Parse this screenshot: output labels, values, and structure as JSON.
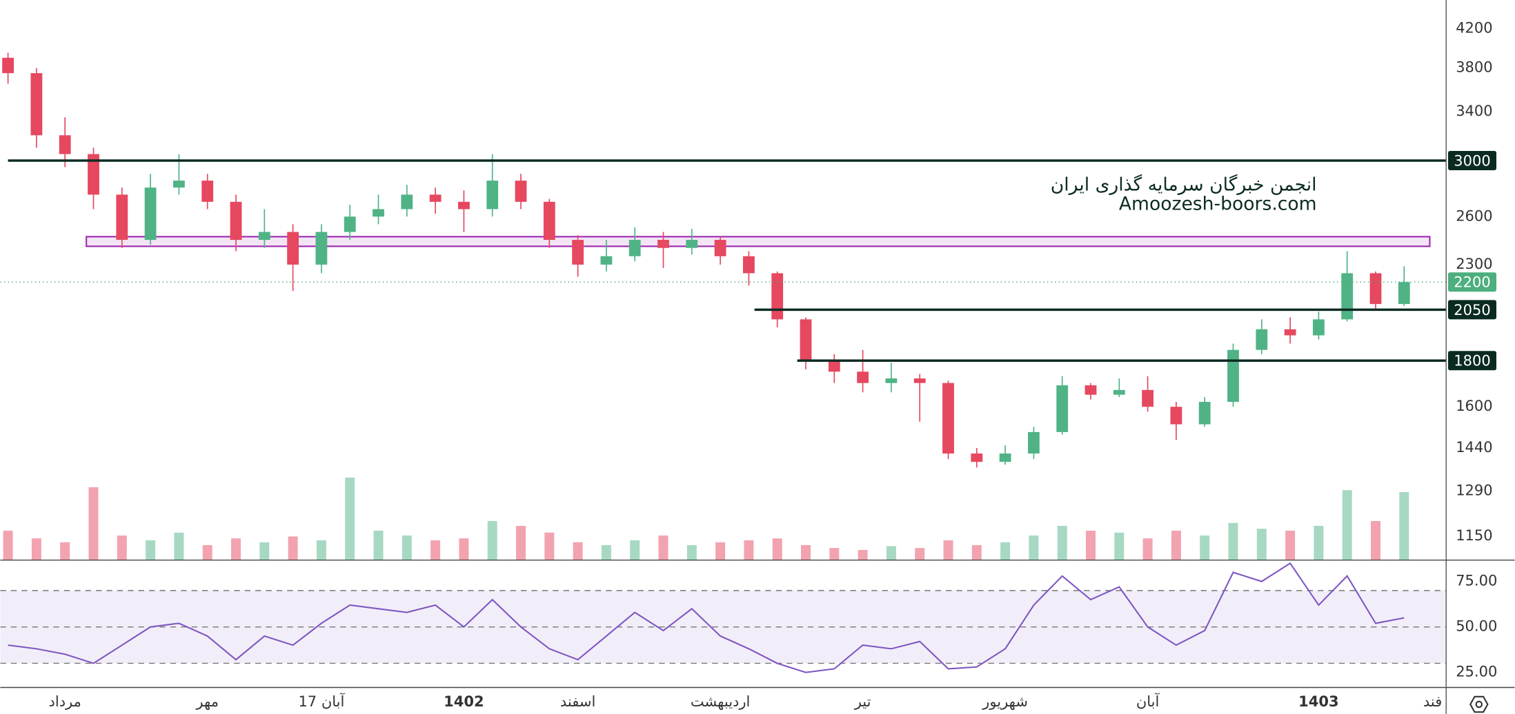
{
  "chart_data": {
    "type": "candlestick",
    "log_scale": true,
    "grid": false,
    "up_color": "#4fb386",
    "down_color": "#e5485f",
    "open": [
      3900,
      3750,
      3200,
      3050,
      2750,
      2450,
      2800,
      2850,
      2700,
      2450,
      2500,
      2300,
      2500,
      2600,
      2650,
      2750,
      2700,
      2650,
      2850,
      2700,
      2450,
      2300,
      2350,
      2450,
      2400,
      2450,
      2350,
      2250,
      2000,
      1800,
      1750,
      1700,
      1720,
      1700,
      1420,
      1390,
      1420,
      1500,
      1690,
      1650,
      1670,
      1600,
      1530,
      1620,
      1850,
      1950,
      1920,
      2000,
      2250,
      2080
    ],
    "high": [
      3950,
      3800,
      3350,
      3100,
      2800,
      2900,
      3050,
      2900,
      2750,
      2650,
      2550,
      2550,
      2680,
      2750,
      2820,
      2800,
      2780,
      3050,
      2900,
      2720,
      2480,
      2450,
      2530,
      2500,
      2520,
      2470,
      2380,
      2260,
      2010,
      1830,
      1850,
      1790,
      1740,
      1710,
      1440,
      1450,
      1520,
      1730,
      1700,
      1720,
      1730,
      1620,
      1640,
      1880,
      2000,
      2010,
      2040,
      2380,
      2260,
      2290
    ],
    "low": [
      3650,
      3100,
      2950,
      2650,
      2400,
      2420,
      2750,
      2650,
      2380,
      2400,
      2150,
      2250,
      2450,
      2550,
      2600,
      2620,
      2500,
      2600,
      2650,
      2400,
      2230,
      2260,
      2320,
      2280,
      2360,
      2300,
      2180,
      1960,
      1760,
      1700,
      1660,
      1660,
      1540,
      1400,
      1370,
      1380,
      1400,
      1490,
      1630,
      1640,
      1580,
      1470,
      1520,
      1600,
      1830,
      1880,
      1900,
      1990,
      2050,
      2070
    ],
    "close": [
      3750,
      3200,
      3050,
      2750,
      2450,
      2800,
      2850,
      2700,
      2450,
      2500,
      2300,
      2500,
      2600,
      2650,
      2750,
      2700,
      2650,
      2850,
      2700,
      2450,
      2300,
      2350,
      2450,
      2400,
      2450,
      2350,
      2250,
      2000,
      1800,
      1750,
      1700,
      1720,
      1700,
      1420,
      1390,
      1420,
      1500,
      1690,
      1650,
      1670,
      1600,
      1530,
      1620,
      1850,
      1950,
      1920,
      2000,
      2250,
      2080,
      2200
    ],
    "volume": [
      30,
      22,
      18,
      75,
      25,
      20,
      28,
      15,
      22,
      18,
      24,
      20,
      85,
      30,
      25,
      20,
      22,
      40,
      35,
      28,
      18,
      15,
      20,
      25,
      15,
      18,
      20,
      22,
      15,
      12,
      10,
      14,
      12,
      20,
      15,
      18,
      25,
      35,
      30,
      28,
      22,
      30,
      25,
      38,
      32,
      30,
      35,
      72,
      40,
      70
    ],
    "ylim": [
      1083,
      4520
    ],
    "yticks": [
      4200,
      3800,
      3400,
      2600,
      2300,
      1600,
      1440,
      1290,
      1150
    ],
    "xticks": [
      {
        "value": 2,
        "label": "مرداد"
      },
      {
        "value": 7,
        "label": "مهر"
      },
      {
        "value": 11,
        "label": "17 آبان"
      },
      {
        "value": 16,
        "label": "1402",
        "style": "bold"
      },
      {
        "value": 20,
        "label": "اسفند"
      },
      {
        "value": 25,
        "label": "اردیبهشت"
      },
      {
        "value": 30,
        "label": "تیر"
      },
      {
        "value": 35,
        "label": "شهریور"
      },
      {
        "value": 40,
        "label": "آبان"
      },
      {
        "value": 46,
        "label": "1403",
        "style": "bold"
      },
      {
        "value": 50,
        "label": "فند"
      }
    ],
    "horizontal_lines": [
      {
        "value": 3000,
        "x_start": 0
      },
      {
        "value": 2050,
        "x_start": 26.2
      },
      {
        "value": 1800,
        "x_start": 27.7
      }
    ],
    "line_color": "#0b2b22",
    "last_price": {
      "value": 2200,
      "color": "#4caf7d"
    },
    "zone": {
      "low": 2410,
      "high": 2470,
      "x_start": 2.75,
      "x_end": 49.9,
      "color": "#9c27b0"
    },
    "watermark": [
      "انجمن خبرگان سرمایه گذاری ایران",
      "Amoozesh-boors.com"
    ],
    "rsi": {
      "color": "#7e57c2",
      "values": [
        40,
        38,
        35,
        30,
        40,
        50,
        52,
        45,
        32,
        45,
        40,
        52,
        62,
        60,
        58,
        62,
        50,
        65,
        50,
        38,
        32,
        45,
        58,
        48,
        60,
        45,
        38,
        30,
        25,
        27,
        40,
        38,
        42,
        27,
        28,
        38,
        62,
        78,
        65,
        72,
        50,
        40,
        48,
        80,
        75,
        85,
        62,
        78,
        52,
        55
      ],
      "ylim": [
        17,
        87
      ],
      "yticks": [
        {
          "value": 25,
          "label": "25.00"
        },
        {
          "value": 50,
          "label": "50.00"
        },
        {
          "value": 75,
          "label": "75.00"
        }
      ],
      "bands": [
        30,
        50,
        70
      ]
    }
  }
}
